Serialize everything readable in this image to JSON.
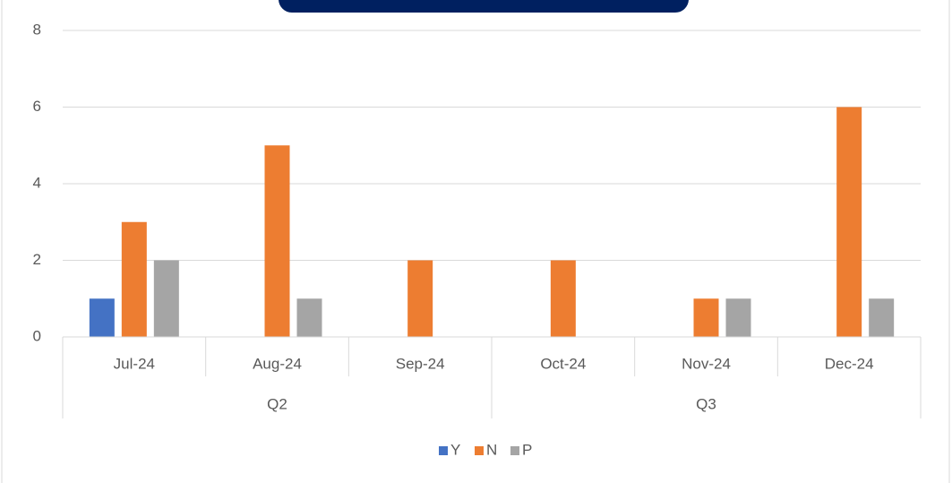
{
  "chart_data": {
    "type": "bar",
    "categories": [
      "Jul-24",
      "Aug-24",
      "Sep-24",
      "Oct-24",
      "Nov-24",
      "Dec-24"
    ],
    "group_labels": [
      "Q2",
      "Q3"
    ],
    "series": [
      {
        "name": "Y",
        "color": "#4472c4",
        "values": [
          1,
          0,
          0,
          0,
          0,
          0
        ]
      },
      {
        "name": "N",
        "color": "#ed7d31",
        "values": [
          3,
          5,
          2,
          2,
          1,
          6
        ]
      },
      {
        "name": "P",
        "color": "#a5a5a5",
        "values": [
          2,
          1,
          0,
          0,
          1,
          1
        ]
      }
    ],
    "ylim": [
      0,
      8
    ],
    "yticks": [
      0,
      2,
      4,
      6,
      8
    ],
    "grid": true,
    "legend": "bottom"
  }
}
